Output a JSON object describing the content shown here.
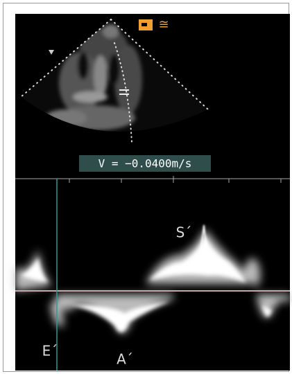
{
  "readout": "V = −0.0400m/s",
  "logo": "≅",
  "labels": {
    "s": "S´",
    "e": "E´",
    "a": "A´"
  }
}
